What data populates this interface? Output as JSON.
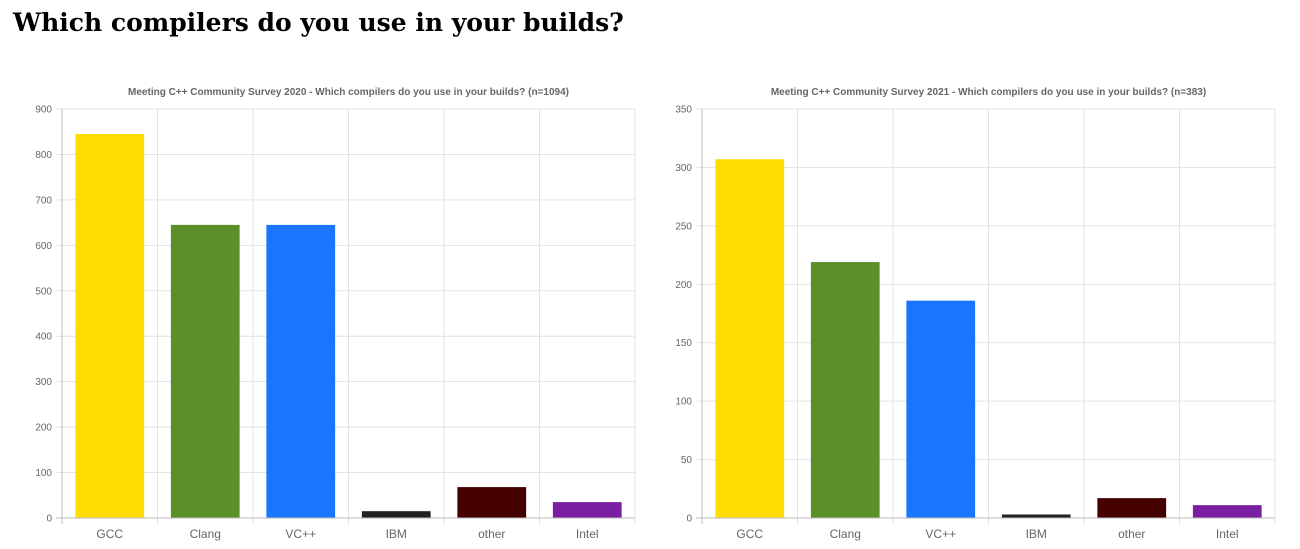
{
  "page": {
    "heading": "Which compilers do you use in your builds?"
  },
  "colors": [
    "#ffdd00",
    "#5a8f29",
    "#1a75ff",
    "#222222",
    "#450000",
    "#7a1fa2"
  ],
  "chart_data": [
    {
      "type": "bar",
      "title": "Meeting C++ Community Survey 2020 - Which compilers do you use in your builds? (n=1094)",
      "categories": [
        "GCC",
        "Clang",
        "VC++",
        "IBM",
        "other",
        "Intel"
      ],
      "values": [
        845,
        645,
        645,
        15,
        68,
        35
      ],
      "ylim": [
        0,
        900
      ],
      "yticks": [
        0,
        100,
        200,
        300,
        400,
        500,
        600,
        700,
        800,
        900
      ],
      "grid": true,
      "legend": "none"
    },
    {
      "type": "bar",
      "title": "Meeting C++ Community Survey 2021  - Which compilers do you use in your builds? (n=383)",
      "categories": [
        "GCC",
        "Clang",
        "VC++",
        "IBM",
        "other",
        "Intel"
      ],
      "values": [
        307,
        219,
        186,
        3,
        17,
        11
      ],
      "ylim": [
        0,
        350
      ],
      "yticks": [
        0,
        50,
        100,
        150,
        200,
        250,
        300,
        350
      ],
      "grid": true,
      "legend": "none"
    }
  ]
}
